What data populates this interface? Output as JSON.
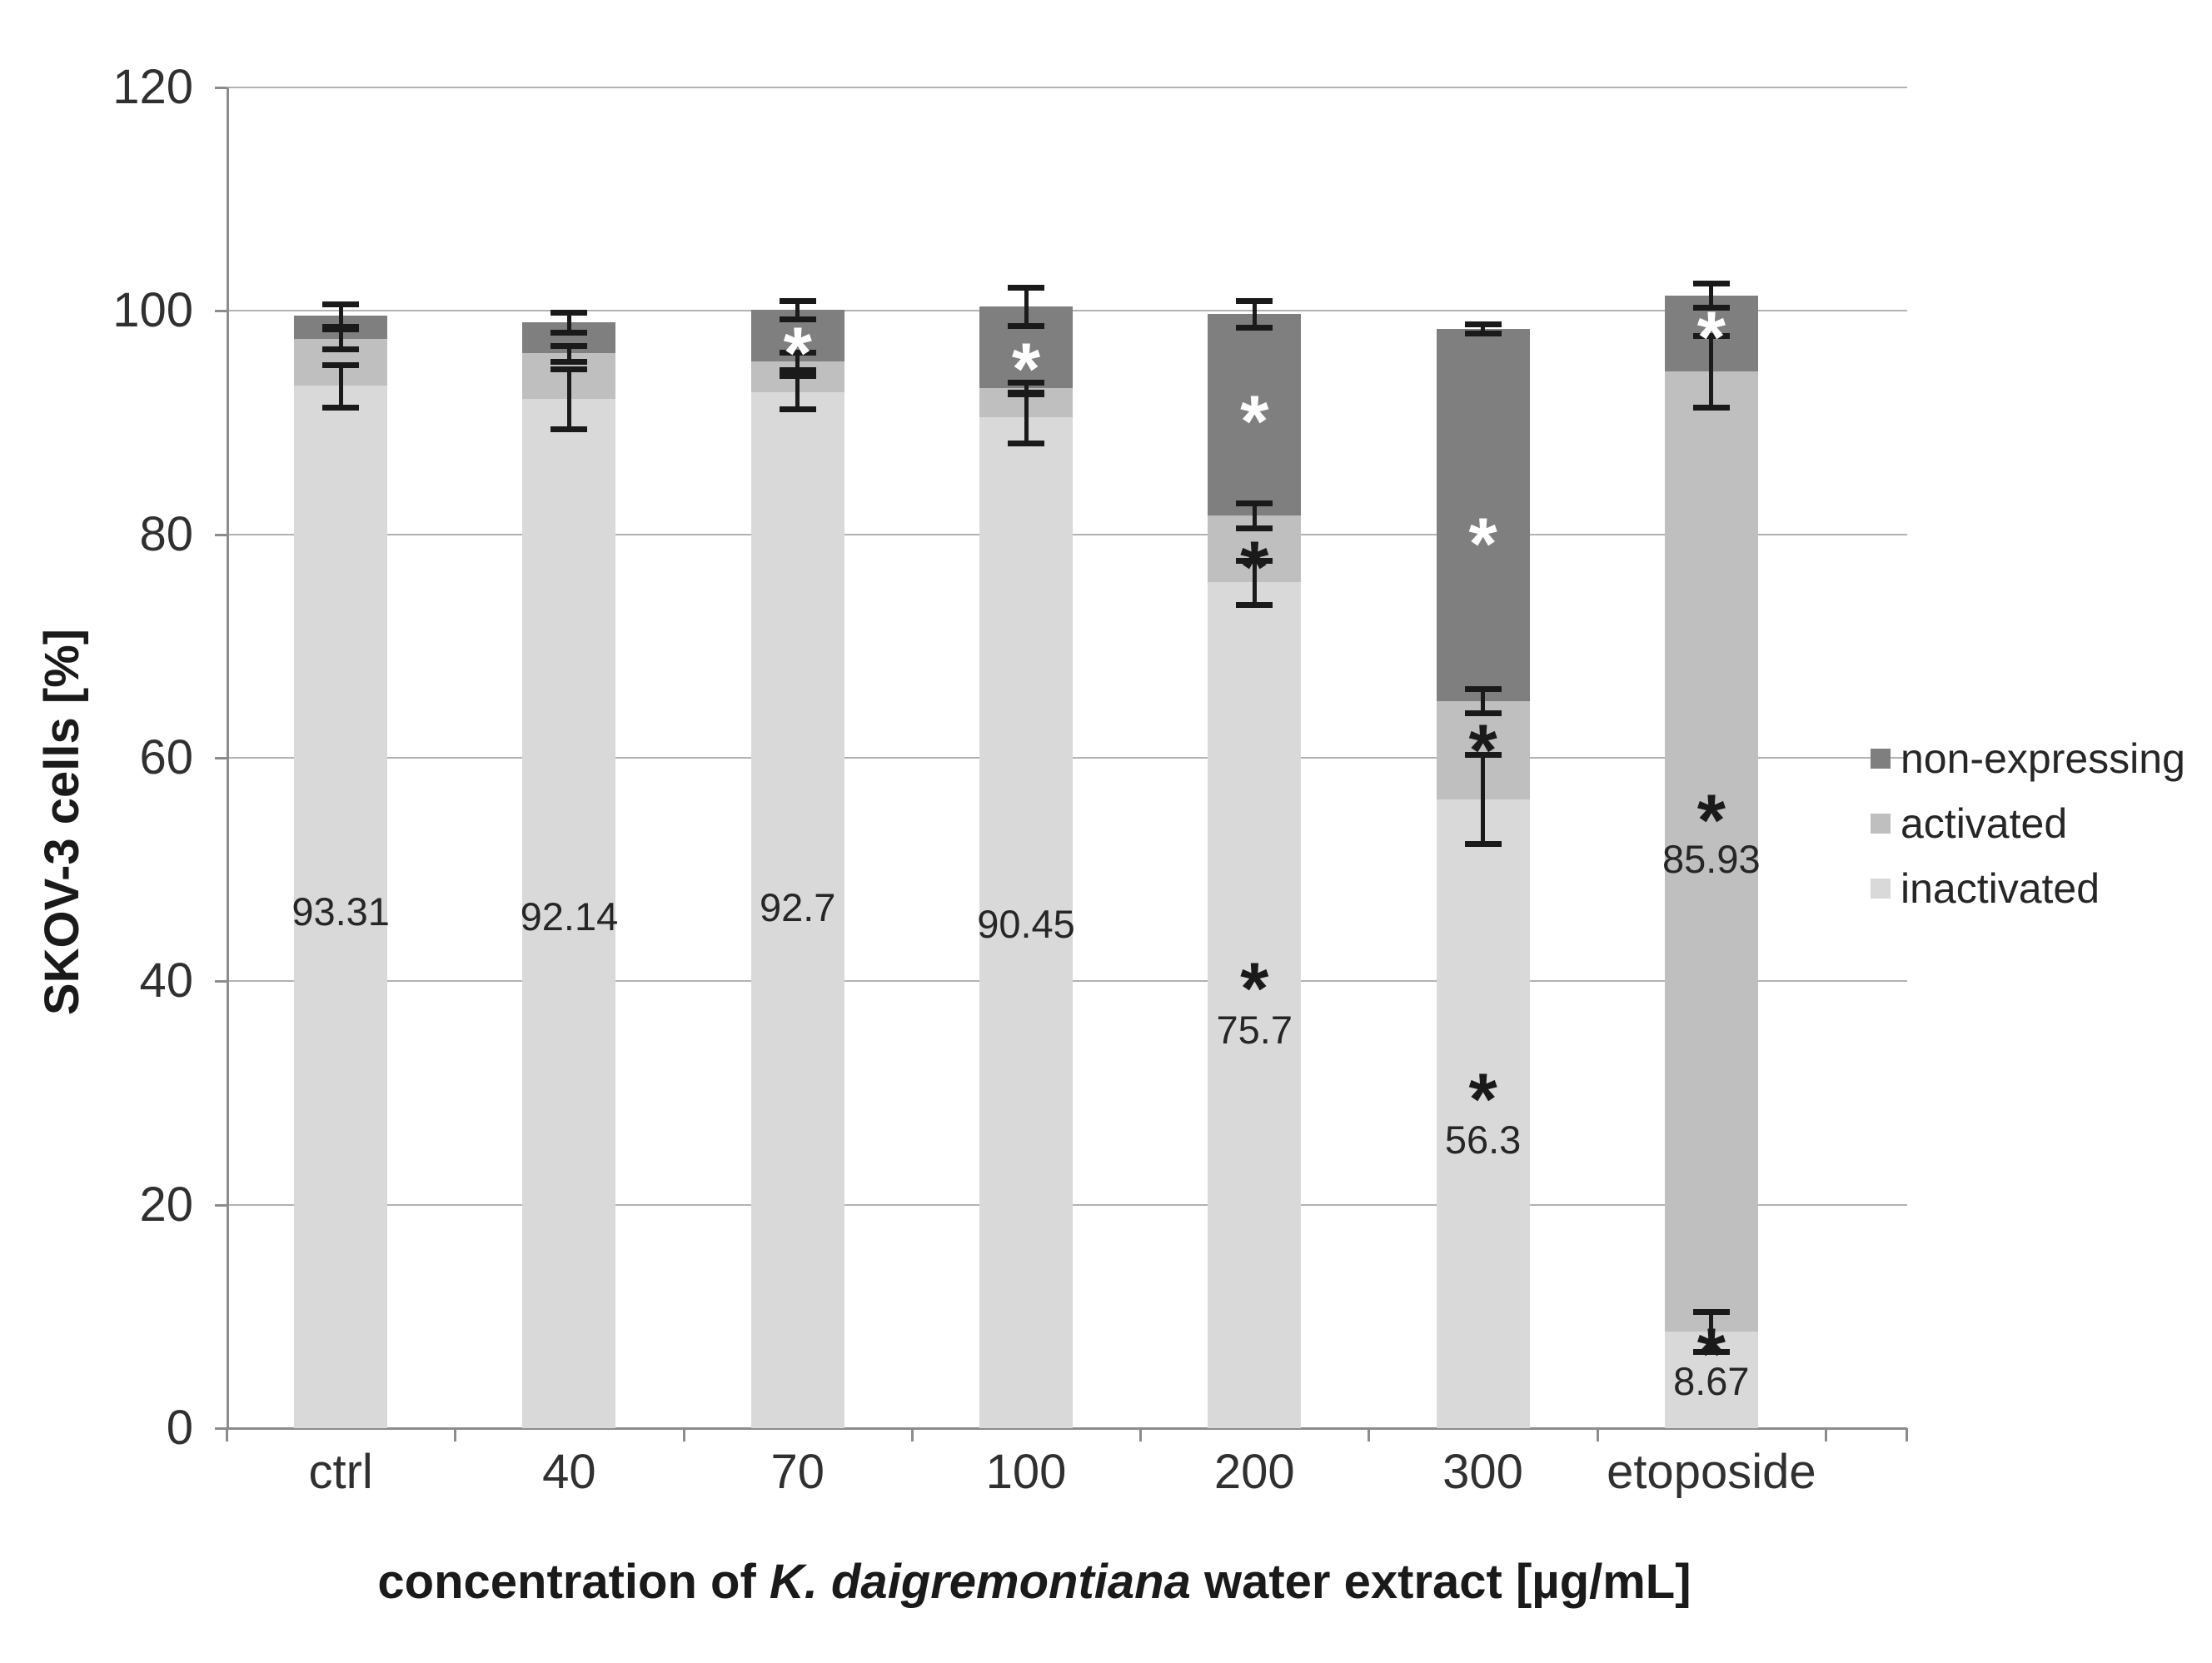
{
  "chart_data": {
    "type": "stacked_bar",
    "ylabel": "SKOV-3 cells [%]",
    "xlabel_parts": [
      "concentration of ",
      "K. daigremontiana",
      " water extract [µg/mL]"
    ],
    "ylim": [
      0,
      120
    ],
    "yticks": [
      0,
      20,
      40,
      60,
      80,
      100,
      120
    ],
    "grid": true,
    "legend_position": "right",
    "categories": [
      "ctrl",
      "40",
      "70",
      "100",
      "200",
      "300",
      "etoposide"
    ],
    "series": [
      {
        "name": "inactivated",
        "color": "#d9d9d9",
        "values": [
          93.31,
          92.14,
          92.7,
          90.45,
          75.7,
          56.3,
          8.67
        ]
      },
      {
        "name": "activated",
        "color": "#bfbfbf",
        "values": [
          4.19,
          4.06,
          2.8,
          2.65,
          6.0,
          8.8,
          85.93
        ]
      },
      {
        "name": "non-expressing",
        "color": "#7f7f7f",
        "values": [
          2.1,
          2.8,
          4.6,
          7.3,
          18.0,
          33.3,
          6.8
        ]
      }
    ],
    "bar_labels": [
      {
        "cat": 0,
        "text": "93.31",
        "y": 46.2
      },
      {
        "cat": 1,
        "text": "92.14",
        "y": 45.8
      },
      {
        "cat": 2,
        "text": "92.7",
        "y": 46.6
      },
      {
        "cat": 3,
        "text": "90.45",
        "y": 45.1
      },
      {
        "cat": 4,
        "text": "75.7",
        "y": 35.6
      },
      {
        "cat": 5,
        "text": "56.3",
        "y": 25.8
      },
      {
        "cat": 6,
        "text": "85.93",
        "y": 50.9
      },
      {
        "cat": 6,
        "text": "8.67",
        "y": 4.2
      }
    ],
    "error_bars": [
      {
        "cat": 0,
        "y": 99.6,
        "e": 1.0
      },
      {
        "cat": 0,
        "y": 97.5,
        "e": 0.9
      },
      {
        "cat": 0,
        "y": 93.31,
        "e": 1.9
      },
      {
        "cat": 1,
        "y": 99.0,
        "e": 0.9
      },
      {
        "cat": 1,
        "y": 96.2,
        "e": 0.7
      },
      {
        "cat": 1,
        "y": 92.14,
        "e": 2.7
      },
      {
        "cat": 2,
        "y": 100.1,
        "e": 0.8
      },
      {
        "cat": 2,
        "y": 95.5,
        "e": 0.8
      },
      {
        "cat": 2,
        "y": 92.7,
        "e": 1.5
      },
      {
        "cat": 3,
        "y": 100.4,
        "e": 1.7
      },
      {
        "cat": 3,
        "y": 93.1,
        "e": 0.5
      },
      {
        "cat": 3,
        "y": 90.45,
        "e": 2.3
      },
      {
        "cat": 4,
        "y": 99.7,
        "e": 1.2
      },
      {
        "cat": 4,
        "y": 81.7,
        "e": 1.1
      },
      {
        "cat": 4,
        "y": 75.7,
        "e": 2.0
      },
      {
        "cat": 5,
        "y": 98.4,
        "e": 0.4
      },
      {
        "cat": 5,
        "y": 65.1,
        "e": 1.1
      },
      {
        "cat": 5,
        "y": 56.3,
        "e": 4.0
      },
      {
        "cat": 6,
        "y": 101.4,
        "e": 1.1
      },
      {
        "cat": 6,
        "y": 94.6,
        "e": 3.2
      },
      {
        "cat": 6,
        "y": 8.67,
        "e": 1.8
      }
    ],
    "asterisks": [
      {
        "cat": 2,
        "y": 97.8,
        "color": "#ffffff"
      },
      {
        "cat": 3,
        "y": 96.4,
        "color": "#ffffff"
      },
      {
        "cat": 4,
        "y": 91.7,
        "color": "#ffffff"
      },
      {
        "cat": 4,
        "y": 78.6,
        "color": "#1a1a1a"
      },
      {
        "cat": 4,
        "y": 40.9,
        "color": "#1a1a1a"
      },
      {
        "cat": 5,
        "y": 80.7,
        "color": "#ffffff"
      },
      {
        "cat": 5,
        "y": 62.2,
        "color": "#1a1a1a"
      },
      {
        "cat": 5,
        "y": 31.0,
        "color": "#1a1a1a"
      },
      {
        "cat": 6,
        "y": 99.2,
        "color": "#ffffff"
      },
      {
        "cat": 6,
        "y": 56.0,
        "color": "#1a1a1a"
      },
      {
        "cat": 6,
        "y": 8.2,
        "color": "#1a1a1a"
      }
    ],
    "legend": [
      "non-expressing",
      "activated",
      "inactivated"
    ],
    "colors": {
      "grid": "#b2b2b2",
      "axis": "#8c8c8c",
      "error_bar": "#1a1a1a",
      "tick_text": "#303030",
      "title_text": "#1a1a1a"
    }
  }
}
